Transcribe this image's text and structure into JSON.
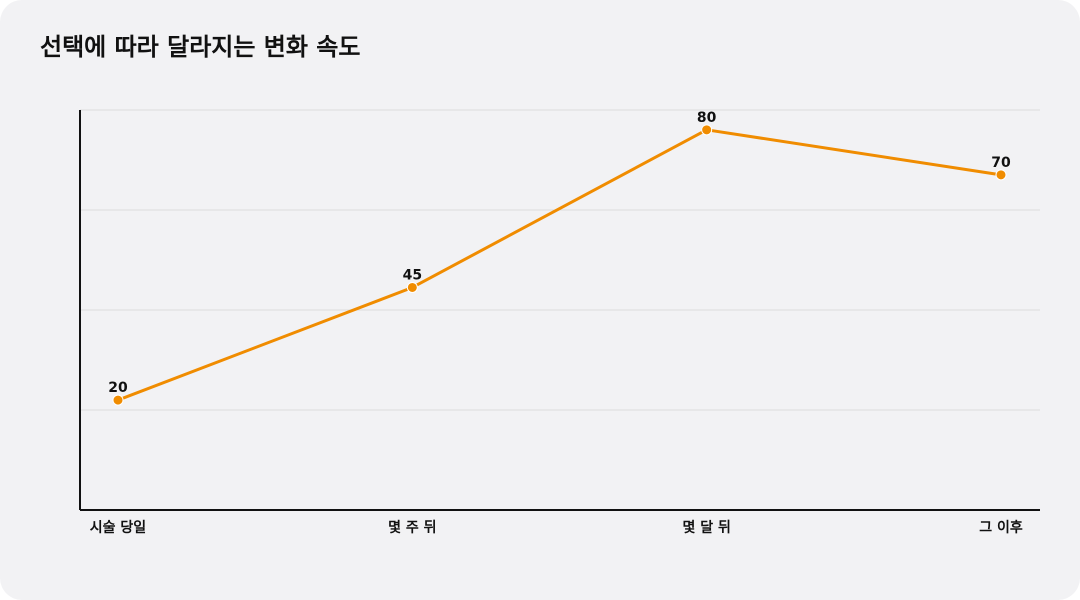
{
  "chart_data": {
    "type": "line",
    "title": "선택에 따라 달라지는 변화 속도",
    "categories": [
      "시술 당일",
      "몇 주 뒤",
      "몇 달 뒤",
      "그 이후"
    ],
    "values": [
      20,
      45,
      80,
      70
    ],
    "color": "#f08c00",
    "ylim": [
      -4.4,
      84.4
    ],
    "grid": true
  }
}
